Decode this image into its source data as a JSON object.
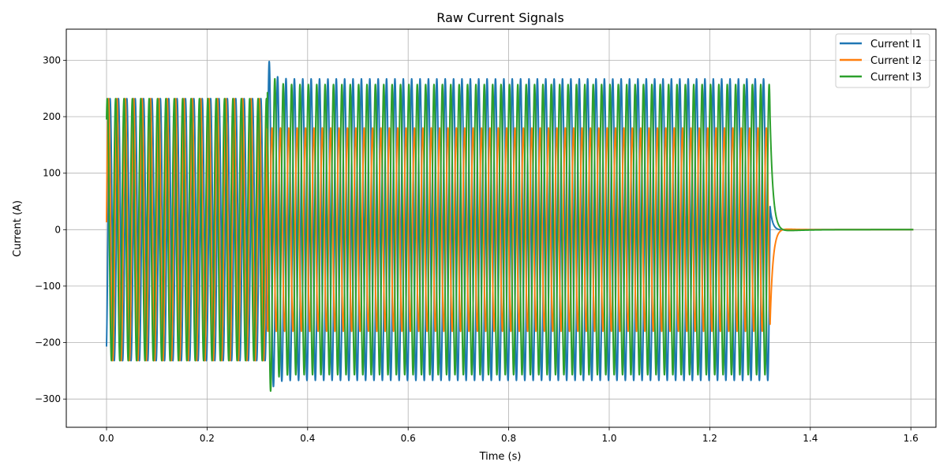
{
  "chart_data": {
    "type": "line",
    "title": "Raw Current Signals",
    "xlabel": "Time (s)",
    "ylabel": "Current (A)",
    "xlim": [
      -0.08,
      1.65
    ],
    "ylim": [
      -350,
      355
    ],
    "xticks": [
      0.0,
      0.2,
      0.4,
      0.6,
      0.8,
      1.0,
      1.2,
      1.4,
      1.6
    ],
    "xtick_labels": [
      "0.0",
      "0.2",
      "0.4",
      "0.6",
      "0.8",
      "1.0",
      "1.2",
      "1.4",
      "1.6"
    ],
    "yticks": [
      -300,
      -200,
      -100,
      0,
      100,
      200,
      300
    ],
    "ytick_labels": [
      "−300",
      "−200",
      "−100",
      "0",
      "100",
      "200",
      "300"
    ],
    "grid": true,
    "legend_position": "top-right",
    "signal": {
      "frequency_hz": 60,
      "t_end": 1.605,
      "fault_start_s": 0.32,
      "fault_clear_s": 1.32,
      "prefault_amplitude_a": 232,
      "fault_amplitude_a": {
        "I1": 267,
        "I2": 180,
        "I3": 257
      },
      "fault_peak_a": {
        "I1": -316,
        "I3": 322
      }
    },
    "series": [
      {
        "name": "Current I1",
        "color": "#1f77b4",
        "initial_value": -207
      },
      {
        "name": "Current I2",
        "color": "#ff7f0e",
        "initial_value": 13
      },
      {
        "name": "Current I3",
        "color": "#2ca02c",
        "initial_value": 195
      }
    ]
  }
}
